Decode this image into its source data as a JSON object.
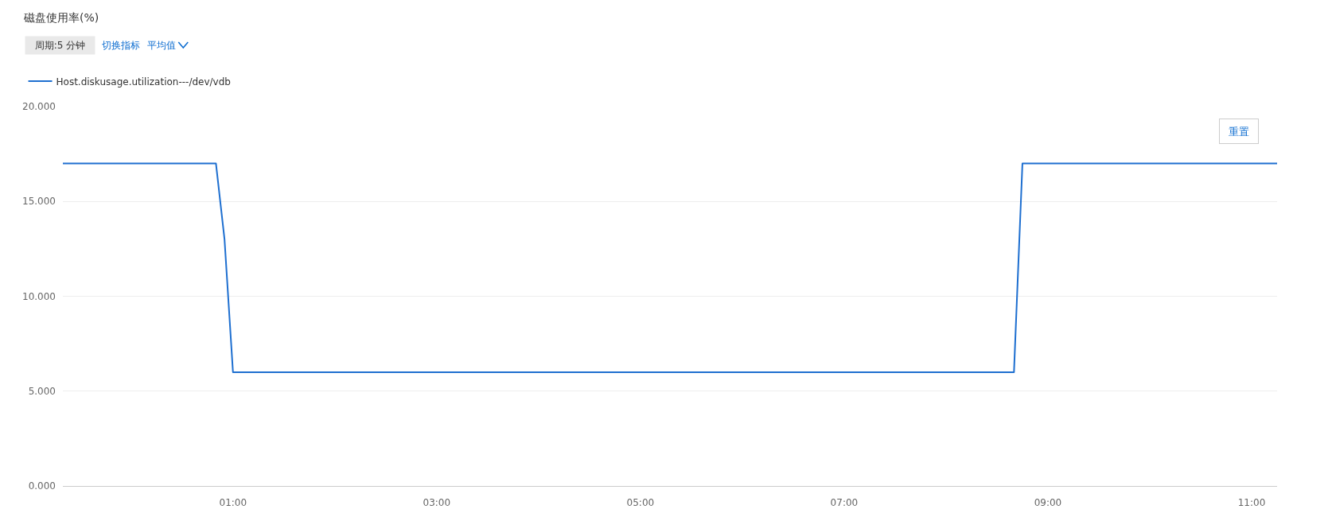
{
  "chart_data": {
    "type": "line",
    "title": "磁盘使用率(%)",
    "annotations": [
      "周期:5 分钟",
      "切换指标",
      "平均值",
      "重置"
    ],
    "x": [
      -0.67,
      0.833,
      0.917,
      1,
      8.667,
      8.75,
      11.25
    ],
    "series": [
      {
        "name": "Host.diskusage.utilization---/dev/vdb",
        "color": "#1e6fd0",
        "values": [
          17,
          17,
          13,
          6,
          6,
          17,
          17
        ]
      }
    ],
    "xlim": [
      -0.67,
      11.25
    ],
    "xticks": [
      {
        "value": 1,
        "label": "01:00"
      },
      {
        "value": 3,
        "label": "03:00"
      },
      {
        "value": 5,
        "label": "05:00"
      },
      {
        "value": 7,
        "label": "07:00"
      },
      {
        "value": 9,
        "label": "09:00"
      },
      {
        "value": 11,
        "label": "11:00"
      }
    ],
    "ylim": [
      0,
      20
    ],
    "yticks": [
      {
        "value": 0,
        "label": "0.000"
      },
      {
        "value": 5,
        "label": "5.000"
      },
      {
        "value": 10,
        "label": "10.000"
      },
      {
        "value": 15,
        "label": "15.000"
      },
      {
        "value": 20,
        "label": "20.000"
      }
    ],
    "grid": "y",
    "legend": "top left"
  }
}
